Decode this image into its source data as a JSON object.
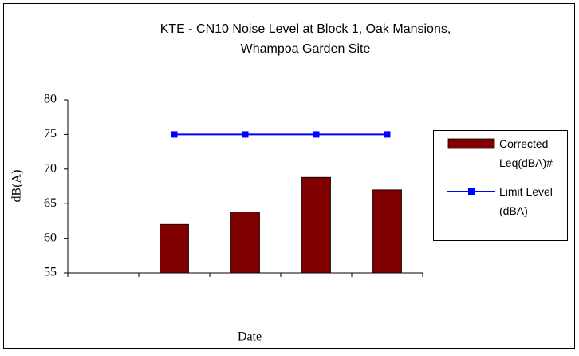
{
  "chart_data": {
    "type": "bar_line",
    "title": "KTE - CN10 Noise Level at Block 1, Oak Mansions, Whampoa Garden Site",
    "x_label": "Date",
    "y_label": "dB(A)",
    "categories": [
      null,
      null,
      null,
      null,
      null
    ],
    "series": [
      {
        "name": "Corrected Leq(dBA)#",
        "type": "bar",
        "color": "#800000",
        "values": [
          null,
          62,
          63.8,
          68.8,
          67
        ]
      },
      {
        "name": "Limit Level (dBA)",
        "type": "line",
        "color": "#0000ff",
        "values": [
          null,
          75,
          75,
          75,
          75
        ]
      }
    ],
    "ylim": [
      55,
      80
    ],
    "yticks": [
      55,
      60,
      65,
      70,
      75,
      80
    ],
    "grid": false,
    "legend": "right"
  }
}
